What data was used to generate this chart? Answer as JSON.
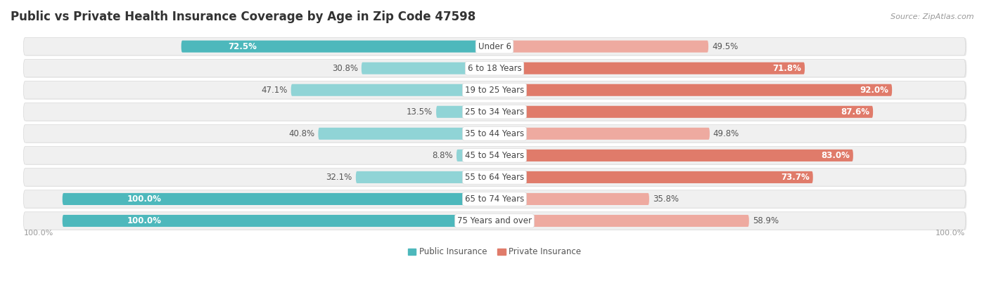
{
  "title": "Public vs Private Health Insurance Coverage by Age in Zip Code 47598",
  "source": "Source: ZipAtlas.com",
  "categories": [
    "Under 6",
    "6 to 18 Years",
    "19 to 25 Years",
    "25 to 34 Years",
    "35 to 44 Years",
    "45 to 54 Years",
    "55 to 64 Years",
    "65 to 74 Years",
    "75 Years and over"
  ],
  "public_values": [
    72.5,
    30.8,
    47.1,
    13.5,
    40.8,
    8.8,
    32.1,
    100.0,
    100.0
  ],
  "private_values": [
    49.5,
    71.8,
    92.0,
    87.6,
    49.8,
    83.0,
    73.7,
    35.8,
    58.9
  ],
  "public_color": "#4db8bc",
  "private_color": "#e07b6a",
  "public_color_light": "#90d4d6",
  "private_color_light": "#eeaaa0",
  "row_bg_color": "#f0f0f0",
  "row_border_color": "#d8d8d8",
  "shadow_color": "#cccccc",
  "center_label_bg": "#ffffff",
  "max_value": 100.0,
  "title_fontsize": 12,
  "label_fontsize": 8.5,
  "tick_fontsize": 8,
  "legend_fontsize": 8.5,
  "source_fontsize": 8,
  "background_color": "#ffffff",
  "public_threshold": 60.0,
  "private_threshold": 65.0
}
